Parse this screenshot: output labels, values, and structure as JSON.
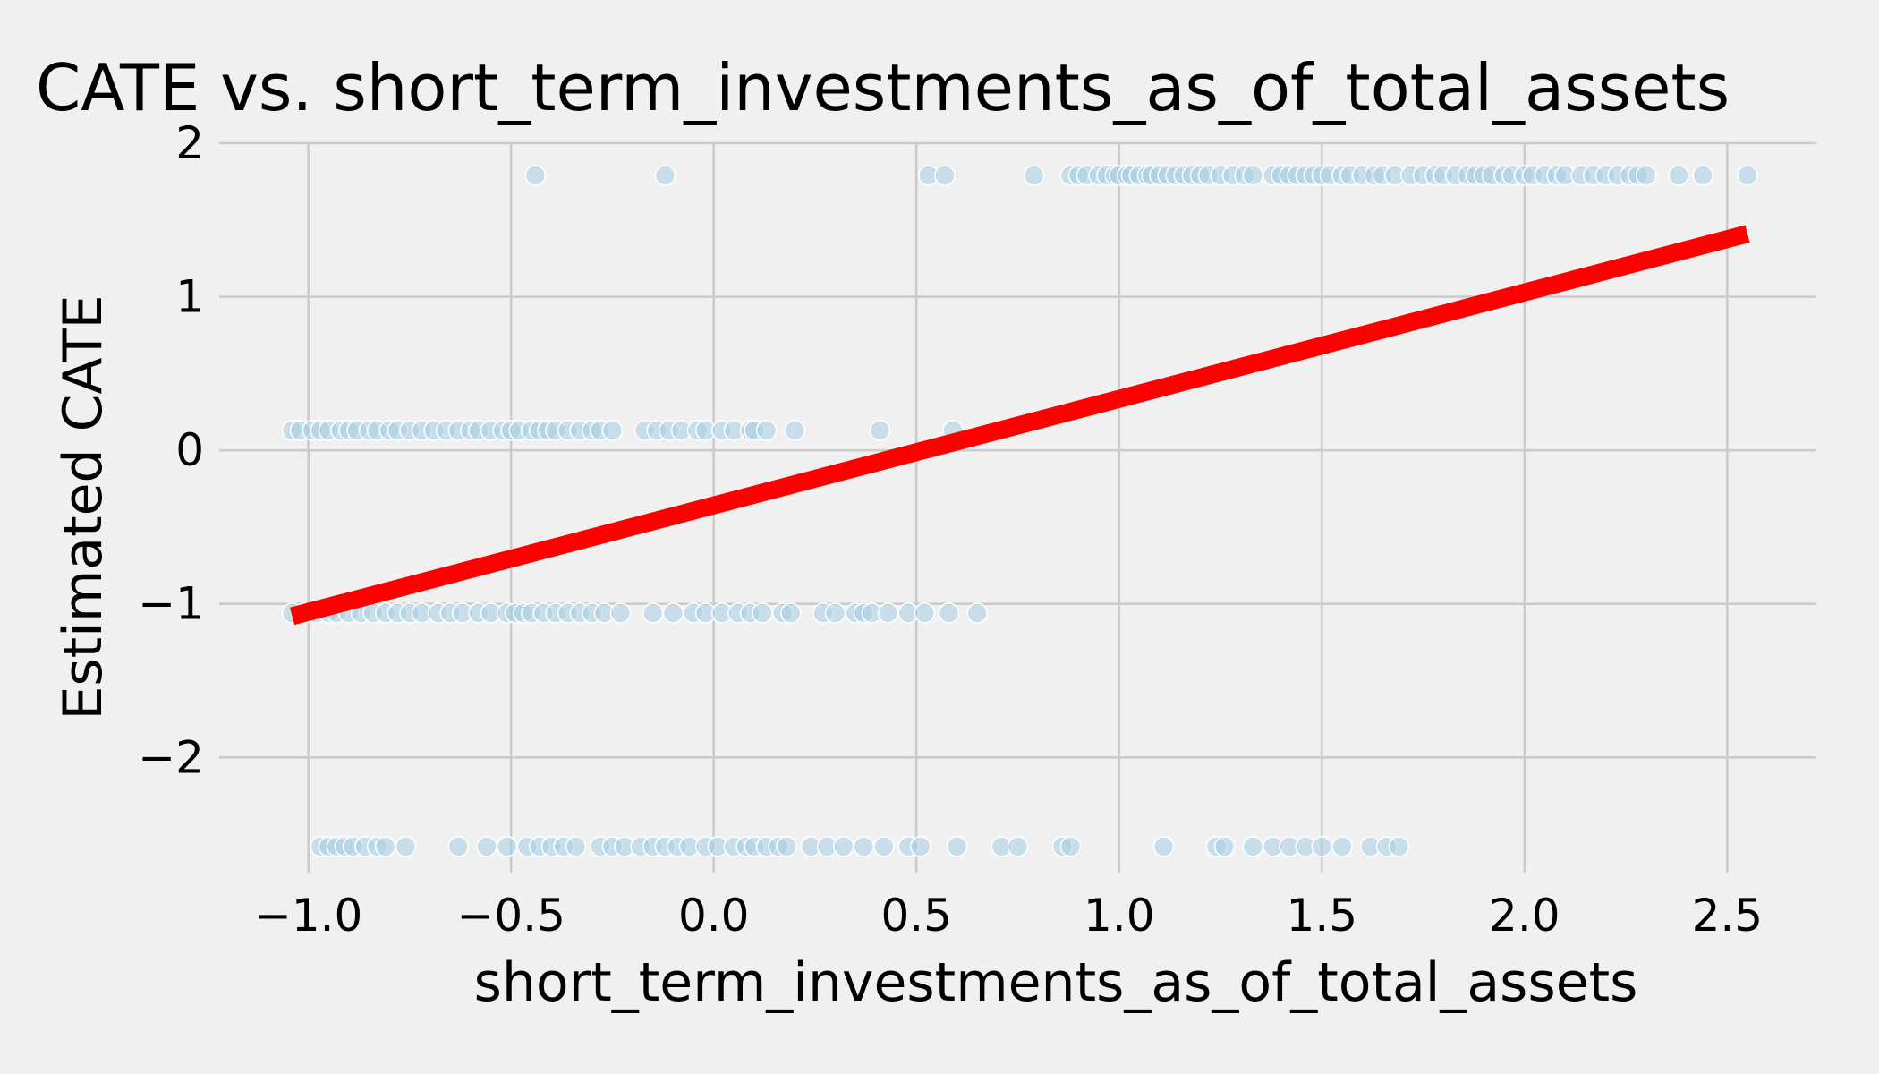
{
  "chart_data": {
    "type": "scatter",
    "title": "CATE vs. short_term_investments_as_of_total_assets",
    "xlabel": "short_term_investments_as_of_total_assets",
    "ylabel": "Estimated CATE",
    "xlim": [
      -1.22,
      2.72
    ],
    "ylim": [
      -2.75,
      2.0
    ],
    "x_ticks": [
      -1.0,
      -0.5,
      0.0,
      0.5,
      1.0,
      1.5,
      2.0,
      2.5
    ],
    "x_tick_labels": [
      "−1.0",
      "−0.5",
      "0.0",
      "0.5",
      "1.0",
      "1.5",
      "2.0",
      "2.5"
    ],
    "y_ticks": [
      -2,
      -1,
      0,
      1,
      2
    ],
    "y_tick_labels": [
      "−2",
      "−1",
      "0",
      "1",
      "2"
    ],
    "grid": true,
    "series": [
      {
        "kind": "scatter",
        "color": "#a6cee3",
        "opacity": 0.55,
        "levels": [
          {
            "y": 1.79,
            "x": [
              -0.44,
              -0.12,
              0.53,
              0.57,
              0.79,
              0.88,
              0.9,
              0.92,
              0.95,
              0.97,
              0.99,
              1.0,
              1.02,
              1.03,
              1.05,
              1.07,
              1.08,
              1.1,
              1.12,
              1.14,
              1.16,
              1.18,
              1.2,
              1.22,
              1.25,
              1.28,
              1.31,
              1.33,
              1.38,
              1.4,
              1.42,
              1.44,
              1.46,
              1.48,
              1.5,
              1.52,
              1.55,
              1.57,
              1.6,
              1.63,
              1.65,
              1.68,
              1.72,
              1.75,
              1.78,
              1.8,
              1.83,
              1.86,
              1.88,
              1.9,
              1.92,
              1.95,
              1.97,
              2.0,
              2.02,
              2.05,
              2.08,
              2.1,
              2.14,
              2.17,
              2.2,
              2.23,
              2.26,
              2.28,
              2.3,
              2.38,
              2.44,
              2.55
            ]
          },
          {
            "y": 0.13,
            "x": [
              -1.04,
              -1.02,
              -0.99,
              -0.97,
              -0.95,
              -0.92,
              -0.9,
              -0.88,
              -0.85,
              -0.83,
              -0.8,
              -0.78,
              -0.75,
              -0.72,
              -0.69,
              -0.66,
              -0.63,
              -0.6,
              -0.58,
              -0.55,
              -0.52,
              -0.5,
              -0.48,
              -0.45,
              -0.43,
              -0.41,
              -0.39,
              -0.36,
              -0.33,
              -0.3,
              -0.28,
              -0.25,
              -0.17,
              -0.14,
              -0.11,
              -0.08,
              -0.04,
              -0.02,
              0.02,
              0.05,
              0.09,
              0.1,
              0.13,
              0.2,
              0.41,
              0.59
            ]
          },
          {
            "y": -1.06,
            "x": [
              -1.04,
              -1.01,
              -0.98,
              -0.95,
              -0.93,
              -0.9,
              -0.87,
              -0.84,
              -0.81,
              -0.78,
              -0.75,
              -0.72,
              -0.68,
              -0.65,
              -0.62,
              -0.58,
              -0.55,
              -0.51,
              -0.49,
              -0.47,
              -0.45,
              -0.42,
              -0.39,
              -0.36,
              -0.33,
              -0.3,
              -0.27,
              -0.23,
              -0.15,
              -0.1,
              -0.05,
              -0.02,
              0.02,
              0.06,
              0.09,
              0.12,
              0.17,
              0.19,
              0.27,
              0.3,
              0.35,
              0.37,
              0.39,
              0.43,
              0.48,
              0.52,
              0.58,
              0.65
            ]
          },
          {
            "y": -2.58,
            "x": [
              -0.97,
              -0.95,
              -0.93,
              -0.91,
              -0.89,
              -0.86,
              -0.83,
              -0.81,
              -0.76,
              -0.63,
              -0.56,
              -0.51,
              -0.46,
              -0.43,
              -0.4,
              -0.37,
              -0.34,
              -0.28,
              -0.25,
              -0.22,
              -0.18,
              -0.15,
              -0.12,
              -0.09,
              -0.06,
              -0.02,
              0.01,
              0.05,
              0.08,
              0.1,
              0.13,
              0.16,
              0.18,
              0.24,
              0.28,
              0.32,
              0.37,
              0.42,
              0.48,
              0.51,
              0.6,
              0.71,
              0.75,
              0.86,
              0.88,
              1.11,
              1.24,
              1.26,
              1.33,
              1.38,
              1.42,
              1.46,
              1.5,
              1.55,
              1.62,
              1.66,
              1.69
            ]
          }
        ]
      },
      {
        "kind": "line",
        "color": "#ff0000",
        "points": [
          [
            -1.04,
            -1.08
          ],
          [
            2.55,
            1.41
          ]
        ]
      }
    ]
  }
}
